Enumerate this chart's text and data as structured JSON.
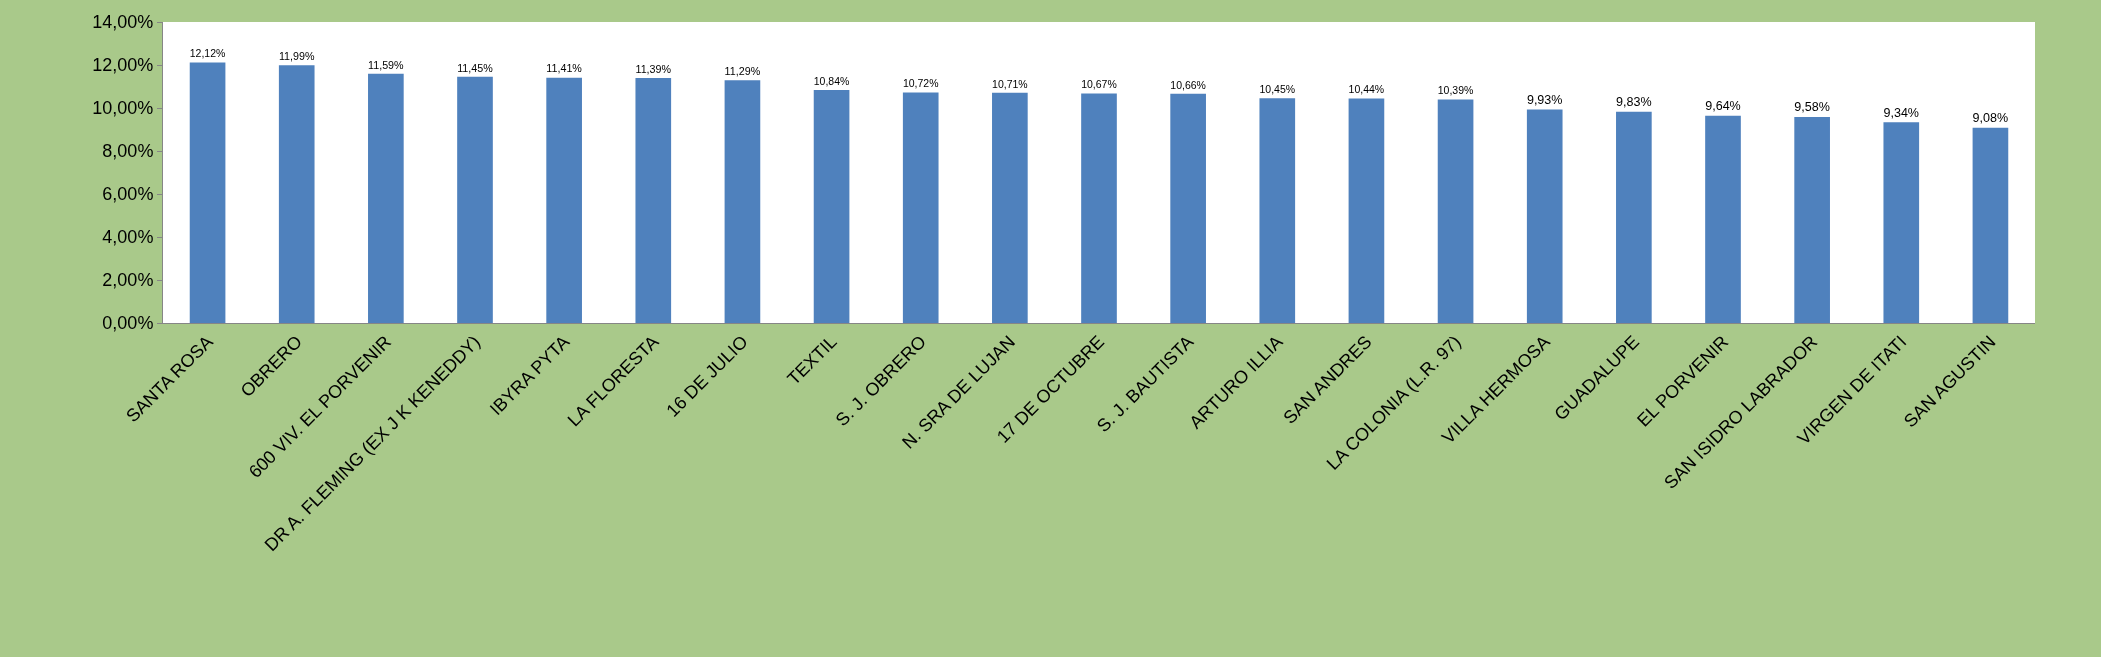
{
  "chart_data": {
    "type": "bar",
    "categories": [
      "SANTA ROSA",
      "OBRERO",
      "600 VIV. EL PORVENIR",
      "DR A. FLEMING (EX J K KENEDDY)",
      "IBYRA PYTA",
      "LA FLORESTA",
      "16 DE JULIO",
      "TEXTIL",
      "S. J. OBRERO",
      "N. SRA DE LUJAN",
      "17 DE OCTUBRE",
      "S. J. BAUTISTA",
      "ARTURO ILLIA",
      "SAN ANDRES",
      "LA COLONIA (L.R. 97)",
      "VILLA HERMOSA",
      "GUADALUPE",
      "EL PORVENIR",
      "SAN ISIDRO LABRADOR",
      "VIRGEN DE ITATI",
      "SAN AGUSTIN"
    ],
    "values": [
      12.12,
      11.99,
      11.59,
      11.45,
      11.41,
      11.39,
      11.29,
      10.84,
      10.72,
      10.71,
      10.67,
      10.66,
      10.45,
      10.44,
      10.39,
      9.93,
      9.83,
      9.64,
      9.58,
      9.34,
      9.08
    ],
    "value_labels": [
      "12,12%",
      "11,99%",
      "11,59%",
      "11,45%",
      "11,41%",
      "11,39%",
      "11,29%",
      "10,84%",
      "10,72%",
      "10,71%",
      "10,67%",
      "10,66%",
      "10,45%",
      "10,44%",
      "10,39%",
      "9,93%",
      "9,83%",
      "9,64%",
      "9,58%",
      "9,34%",
      "9,08%"
    ],
    "color": "#4f81bd",
    "ylim": [
      0,
      14
    ],
    "yticks": [
      {
        "value": 0,
        "label": "0,00%"
      },
      {
        "value": 2,
        "label": "2,00%"
      },
      {
        "value": 4,
        "label": "4,00%"
      },
      {
        "value": 6,
        "label": "6,00%"
      },
      {
        "value": 8,
        "label": "8,00%"
      },
      {
        "value": 10,
        "label": "10,00%"
      },
      {
        "value": 12,
        "label": "12,00%"
      },
      {
        "value": 14,
        "label": "14,00%"
      }
    ],
    "grid": false,
    "legend": false
  }
}
